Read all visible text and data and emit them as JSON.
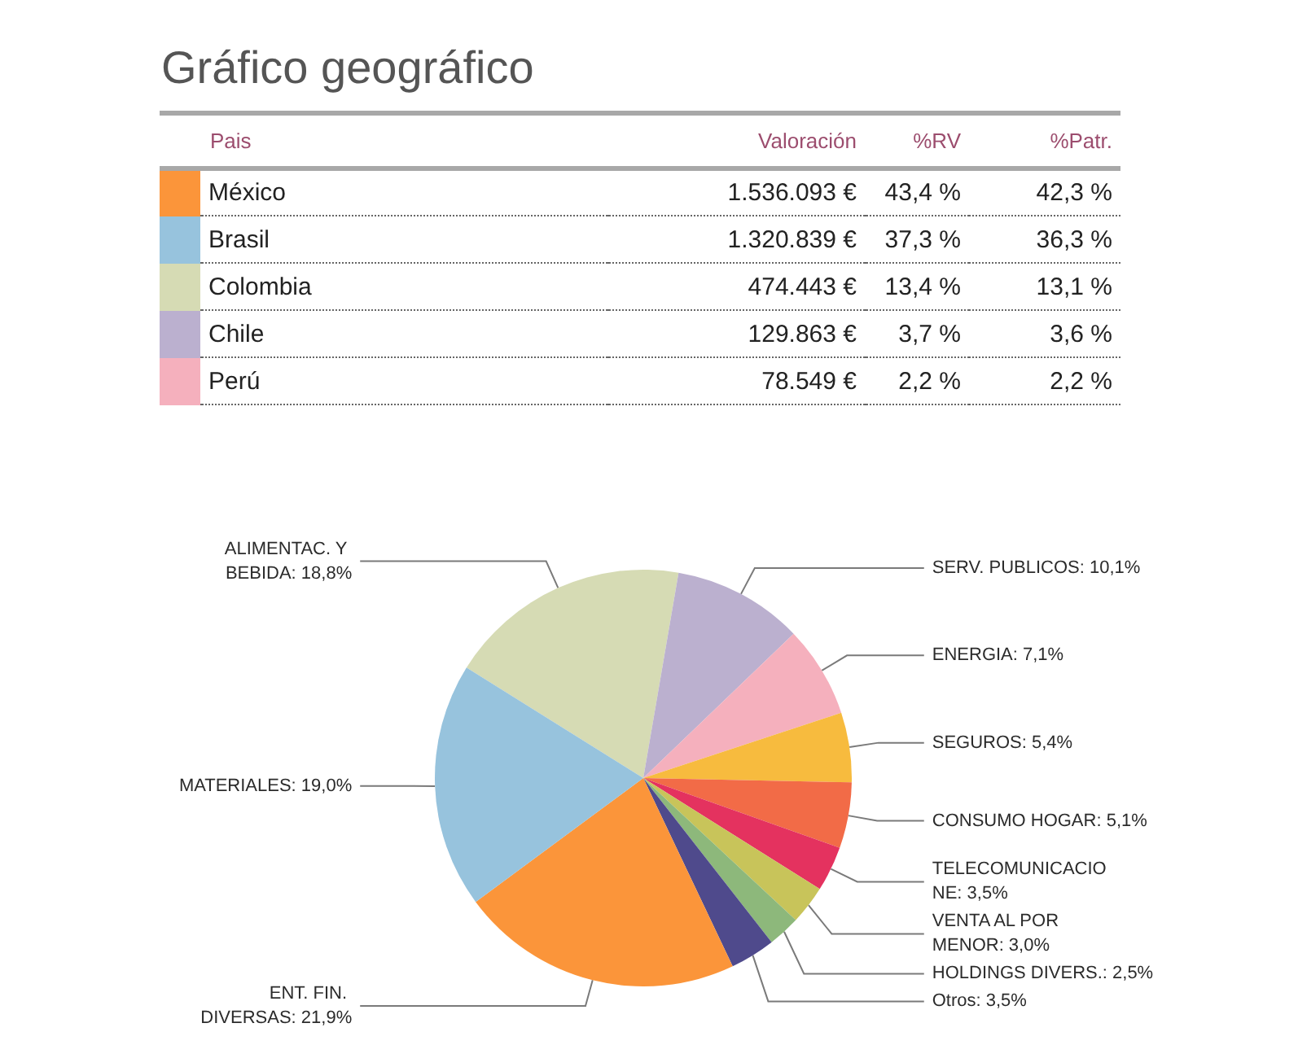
{
  "chart_data": [
    {
      "type": "other",
      "title": "Gráfico geográfico",
      "legend_title": "Pais",
      "categories": [
        "México",
        "Brasil",
        "Colombia",
        "Chile",
        "Perú"
      ],
      "colors": [
        "#fb953a",
        "#97c3dd",
        "#d6dbb4",
        "#bbb0cf",
        "#f5b0bd"
      ],
      "series": [
        {
          "name": "Valoración",
          "values": [
            1536093,
            1320839,
            474443,
            129863,
            78549
          ],
          "value_labels": [
            "1.536.093 €",
            "1.320.839 €",
            "474.443 €",
            "129.863 €",
            "78.549 €"
          ]
        },
        {
          "name": "%RV",
          "values": [
            43.4,
            37.3,
            13.4,
            3.7,
            2.2
          ],
          "value_labels": [
            "43,4 %",
            "37,3 %",
            "13,4 %",
            "3,7 %",
            "2,2 %"
          ]
        },
        {
          "name": "%Patr.",
          "values": [
            42.3,
            36.3,
            13.1,
            3.6,
            2.2
          ],
          "value_labels": [
            "42,3 %",
            "36,3 %",
            "13,1 %",
            "3,6 %",
            "2,2 %"
          ]
        }
      ]
    },
    {
      "type": "pie",
      "categories": [
        "ALIMENTAC. Y BEBIDA",
        "SERV. PUBLICOS",
        "ENERGIA",
        "SEGUROS",
        "CONSUMO HOGAR",
        "TELECOMUNICACIONE",
        "VENTA AL POR MENOR",
        "HOLDINGS DIVERS.",
        "Otros",
        "ENT. FIN. DIVERSAS",
        "MATERIALES"
      ],
      "values": [
        18.8,
        10.1,
        7.1,
        5.4,
        5.1,
        3.5,
        3.0,
        2.5,
        3.5,
        21.9,
        19.0
      ],
      "value_labels": [
        "18,8%",
        "10,1%",
        "7,1%",
        "5,4%",
        "5,1%",
        "3,5%",
        "3,0%",
        "2,5%",
        "3,5%",
        "21,9%",
        "19,0%"
      ],
      "colors": [
        "#d6dbb4",
        "#bbb0cf",
        "#f5b0bd",
        "#f7bb3e",
        "#f26b47",
        "#e4325f",
        "#c8c45a",
        "#8db87b",
        "#4f4a8c",
        "#fb953a",
        "#97c3dd"
      ]
    }
  ]
}
